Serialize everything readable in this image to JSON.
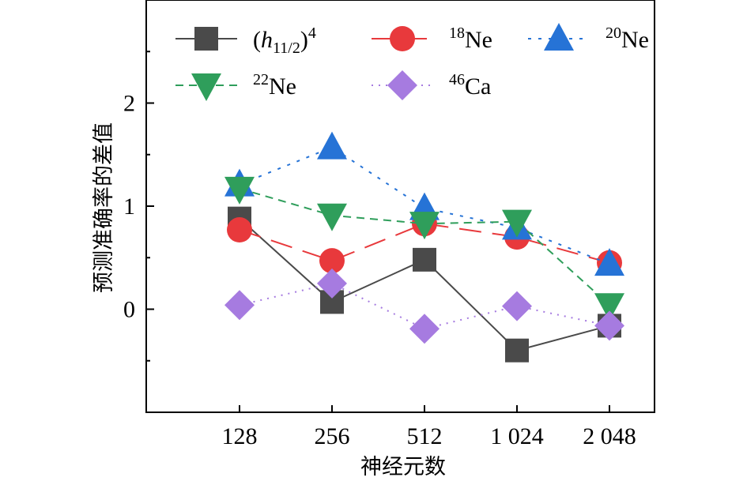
{
  "chart_data": {
    "type": "line",
    "title": "",
    "xlabel": "神经元数",
    "ylabel": "预测准确率的差值",
    "categories": [
      "128",
      "256",
      "512",
      "1 024",
      "2 048"
    ],
    "yticks": [
      "0",
      "1",
      "2"
    ],
    "ylim": [
      -1.0,
      3.0
    ],
    "grid": false,
    "legend_position": "top",
    "series": [
      {
        "name": "(h11/2)4",
        "legend": {
          "base": "(",
          "ital": "h",
          "sub": "11/2",
          "close": ")",
          "sup": "4"
        },
        "color": "#4a4a4a",
        "marker": "square",
        "dash": "",
        "values": [
          0.88,
          0.07,
          0.48,
          -0.4,
          -0.16
        ]
      },
      {
        "name": "18Ne",
        "legend": {
          "sup": "18",
          "base": "Ne"
        },
        "color": "#e8393c",
        "marker": "circle",
        "dash": "28,14",
        "values": [
          0.77,
          0.47,
          0.83,
          0.7,
          0.45
        ]
      },
      {
        "name": "20Ne",
        "legend": {
          "sup": "20",
          "base": "Ne"
        },
        "color": "#2673d6",
        "marker": "triangle-up",
        "dash": "4,9",
        "values": [
          1.21,
          1.57,
          0.98,
          0.79,
          0.44
        ]
      },
      {
        "name": "22Ne",
        "legend": {
          "sup": "22",
          "base": "Ne"
        },
        "color": "#2f9e5b",
        "marker": "triangle-down",
        "dash": "10,7",
        "values": [
          1.17,
          0.91,
          0.83,
          0.85,
          0.04
        ]
      },
      {
        "name": "46Ca",
        "legend": {
          "sup": "46",
          "base": "Ca"
        },
        "color": "#a67be0",
        "marker": "diamond",
        "dash": "2,7",
        "values": [
          0.04,
          0.25,
          -0.19,
          0.03,
          -0.16
        ]
      }
    ]
  }
}
